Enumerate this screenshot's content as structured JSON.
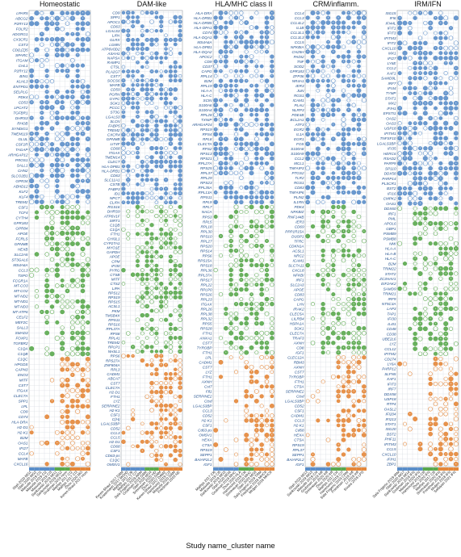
{
  "colors": {
    "blue": "#5b8ec9",
    "green": "#5aa84e",
    "orange": "#e4873a",
    "grid": "#d9dde3",
    "frame": "#9aa0a6",
    "label": "#1f4e8c"
  },
  "figure": {
    "xlabel": "Study name_cluster name"
  },
  "chart_data": [
    {
      "type": "dot-matrix",
      "title": "Homeostatic",
      "genes": [
        "LPAR5",
        "ABCG2",
        "P2RY13",
        "FOLR2",
        "ADGRG1",
        "CX3CR1",
        "CST3",
        "CD(L(Z)5",
        "SPARC",
        "ITGAM",
        "CHL1",
        "P2RY12",
        "BIN1",
        "KLHL3",
        "ENTPD1",
        "SELPLG",
        "PDK4",
        "CD53",
        "LPCAT2",
        "TGFBR1",
        "DHRS3",
        "RHOB",
        "SYNDIG1",
        "TMEM119",
        "GLUL",
        "CSF1R",
        "TAGAP",
        "ARHGAP12",
        "PROS1",
        "SALL1",
        "CHN2",
        "SLCO2B1",
        "GPR34",
        "ABHD12",
        "KLF2",
        "KLF4",
        "TREM2",
        "CSF1",
        "TCF4",
        "CYTH4",
        "GPR183",
        "GPR84",
        "APOE",
        "FCRLS",
        "GPNMB",
        "HEXB",
        "SLC2A5",
        "ST3GAL6",
        "MS4A6A",
        "CCL3",
        "TSPO",
        "FCGR1A",
        "MT-CO3",
        "MT-CO2",
        "MT-ND2",
        "MT-ND1",
        "MT-ND3",
        "MT-ATP6",
        "CELF2",
        "MEF2C",
        "SALL3",
        "SMAD3",
        "FOXP1",
        "TGFBR2",
        "C1QA",
        "C1QB",
        "C1QC",
        "HPGDS",
        "CAPN3",
        "ENO3",
        "MITF",
        "CST7",
        "ITGAX",
        "CLEC7A",
        "SPP1",
        "LPL",
        "CD9",
        "CD74",
        "HLA-DRA",
        "H2-D1",
        "H2-K1",
        "B2M",
        "OAS1",
        "IFI27",
        "CCL4",
        "MAFB",
        "CXCL16"
      ],
      "studies": [
        "Olah 2020 MG1",
        "Olah 2020 MG2",
        "Masuda 2019 Cl1",
        "Masuda 2019 Cl2",
        "Masuda 2019 Cl3",
        "Sankowski 2019 MG1",
        "Sankowski 2019 MG2",
        "Grubman 2019 Hom",
        "Mathys 2017 Cl2",
        "Mathys 2017 Cl3",
        "Zhou 2020 MG",
        "Keren-Shaul 2017 Hom"
      ]
    },
    {
      "type": "dot-matrix",
      "title": "DAM-like",
      "genes": [
        "CD9",
        "SPP1",
        "APOC1",
        "CD63",
        "LGALS3",
        "LIPA",
        "GLRX",
        "LGMN",
        "ATP6V0D2",
        "ASAH1",
        "NAPSA",
        "RAMP1",
        "CTSL",
        "PLA2G7",
        "CST7",
        "SOCS6",
        "MAFB",
        "CD59",
        "PGRN",
        "GYPC",
        "SGK1",
        "PCCC",
        "ST3G",
        "LGALS3",
        "SLCN",
        "FABP5",
        "TREM2",
        "CXCR4",
        "GPNMB",
        "LIT4F",
        "CD68",
        "ITGAX",
        "TMEM14",
        "CLECT",
        "HLA-DPB1",
        "HLA-DRB1",
        "CD63",
        "SLC11A1",
        "CSTB",
        "FABP3",
        "ID1",
        "NPCT",
        "CLIPA",
        "RGS16",
        "DHRS9",
        "ATP6V1F",
        "SIRT1",
        "C1QB",
        "C1QA",
        "FTH1",
        "CHI3L1",
        "CYP27A1",
        "MYO1E",
        "GAPDH",
        "APOE",
        "CPM",
        "IFI30",
        "PYRG",
        "CTSB",
        "MITF",
        "CTSZ",
        "LIPA",
        "RPS12",
        "RPS19",
        "RPS15",
        "ACSL1",
        "PKM",
        "TMSB4X",
        "RPS11",
        "RPS16",
        "RPL37A",
        "RPS8",
        "RPL41",
        "TREM2",
        "RPLP1",
        "NHSL1",
        "RPS6",
        "RPS27A",
        "ZNF804A",
        "RPL3",
        "CADM1",
        "ABCA7",
        "CST7",
        "CLEC7A",
        "H2-D1",
        "FTH1",
        "LYZ",
        "SERPINE2",
        "H2-K1",
        "CSF1",
        "C(H)",
        "LGALS3BP",
        "CD52",
        "CCL3",
        "CCL5",
        "H2-D1",
        "CD68",
        "CSF1",
        "CD63-ps",
        "C1QC",
        "OMSV1"
      ],
      "studies": [
        "Keren-Shaul 2017 DAM",
        "Krasemann 2017 MGnD",
        "Mathys 2017 Cl6",
        "Mathys 2017 Cl7",
        "Sala Frigerio 2019 ARM",
        "Grubman 2019 DAM",
        "Olah 2020 MG4",
        "Srinivasan 2020 HD",
        "Zhou 2020 DAM",
        "Keren-Shaul 2017 DAM2",
        "Hammond 2019 Cl3",
        "Masuda 2020 DAM",
        "Friedman 2018 NE"
      ]
    },
    {
      "type": "dot-matrix",
      "title": "HLA/MHC class II",
      "genes": [
        "HLA-DRA",
        "HLA-DRB1",
        "HLA-DRB5",
        "HLA-DPA1",
        "CD74",
        "HLA-DQA1",
        "MS4A6A",
        "HLA-DPB1",
        "HLA-DQA2",
        "APOC2",
        "CD9",
        "CD37",
        "CAPG",
        "RPL14",
        "B2M",
        "RPL19",
        "HLA-A",
        "HLA-C",
        "SCIN",
        "S100A6",
        "S100A4",
        "RPL28",
        "TXNIP",
        "ARHGAP24",
        "RPS19",
        "RPS4",
        "RPL8",
        "CLECTA",
        "RPS2",
        "RPS13",
        "RPS21",
        "RPL27A",
        "RPS25",
        "RPL37",
        "RPL29",
        "RPS23",
        "RPL35A",
        "RPL13A",
        "RPS11",
        "RPL9",
        "RPL7",
        "NACA",
        "RPS3",
        "RPL5",
        "RPL18",
        "RPL30",
        "RPS10",
        "RPL27",
        "RPS20",
        "RPS14",
        "RPS6",
        "RPS15A",
        "RPS18",
        "RPL36",
        "RPL37A",
        "RPS17",
        "RPL22",
        "RPLP0",
        "RPS26",
        "RPL23",
        "ITGAX",
        "RPL26",
        "RPL38",
        "RPL32",
        "RPS5",
        "RPS28",
        "FTH1",
        "ANXA1",
        "CST7",
        "TYROBP",
        "FTH1",
        "LPL",
        "CADM1",
        "CST7",
        "LYZ",
        "FTH1",
        "AXNH",
        "Cst7",
        "Ftl1",
        "SERPINE2",
        "Ctsd",
        "LGALS3BP",
        "CCL3",
        "CD52",
        "H2-K1",
        "CSF1",
        "Cd63-ps",
        "OMSV1",
        "HEXA",
        "CTSA",
        "RPS19",
        "SEPP1",
        "BAIAP2L2",
        "IGF1"
      ],
      "studies": [
        "Mathys 2017 Cl6",
        "Masuda 2019 Cl5",
        "Sankowski 2019 MG5",
        "Olah 2020 MG6",
        "Grubman 2019 MHC",
        "Zhou 2020 HLA",
        "Hammond 2019 Cl6",
        "Srinivasan 2020 MHC",
        "Olah 2020 MG8",
        "Sala Frigerio 2019 TRM",
        "Friedman 2018 MHCII",
        "Mrdjen 2018 MHCII"
      ]
    },
    {
      "type": "dot-matrix",
      "title": "CRM/inflamm.",
      "genes": [
        "CCL4",
        "CCL3",
        "CCL4L2",
        "IL1B",
        "CCL3L1",
        "CCL3L3",
        "CCL5",
        "NFKBIA",
        "CH25H",
        "PADI2",
        "TNF",
        "SOD2",
        "GPR183",
        "ZFP36",
        "NR4A1",
        "IER3",
        "JUN",
        "RGS1",
        "ICAM1",
        "PLAU",
        "NLRP3",
        "PDE4B",
        "BCL2A1",
        "ATF3",
        "EGR2",
        "IL1A",
        "EGR1",
        "FOS",
        "S100A8",
        "S100A9",
        "CCL2",
        "MCL1",
        "TNFAIP3",
        "PTGS2",
        "TLR2",
        "RGS1",
        "CD83",
        "TNFAIP6",
        "PLIN2",
        "IL1RN",
        "PDK4",
        "NFKBIZ",
        "RNF144B",
        "IER3",
        "CD69",
        "PPP1R15A",
        "DUSP1",
        "TFRC",
        "CDKN1A",
        "ACSL1",
        "NRC2",
        "ICAM1",
        "SLC7A11",
        "CXCL8",
        "NFKBI",
        "IRF1",
        "SLC2A3",
        "APOE",
        "CD83",
        "CAPG",
        "LYN",
        "IRAK2",
        "CLEC5A",
        "LILRB4",
        "HSPA1A",
        "SGK1",
        "CLEC7A",
        "TRAF3",
        "AXNH",
        "CD8",
        "IGF1",
        "CLEC12A",
        "RBM3",
        "AXNH",
        "CST7",
        "TYROBP",
        "FTH1",
        "CTSA",
        "SERPINE2",
        "Ctsd",
        "LGALS3BP",
        "CD52",
        "CSF1",
        "CADM1",
        "CCL3",
        "H2-K1",
        "Cd68",
        "HEXA",
        "CTSA",
        "RPS19",
        "RPL37",
        "SEPP1",
        "BAIAP2L2",
        "IGF1"
      ],
      "studies": [
        "Olah 2020 MG3",
        "Sankowski 2019 MG3",
        "Masuda 2019 Cl4",
        "Grubman 2019 Infl",
        "Srinivasan 2020 Infl",
        "Zhou 2020 Infl",
        "Mathys 2017 Cl4",
        "Hammond 2019 Cl7",
        "Sala Frigerio 2019 CRM",
        "Friedman 2018 Infl",
        "Li 2019 Infl",
        "Sousa 2018 LPS"
      ]
    },
    {
      "type": "dot-matrix",
      "title": "IRM/IFN",
      "genes": [
        "ISG15",
        "IFI6",
        "IFI44L",
        "IFIT1",
        "IFIT3",
        "IFITM3",
        "IFIT2",
        "CXCL10",
        "MX1",
        "IFI27",
        "LY6E",
        "CCL2",
        "XAF1",
        "SAMD9L",
        "IRF7",
        "IFI44",
        "TYMP",
        "STAT1",
        "MX2",
        "IFIH1",
        "EPSTI1",
        "OAS2",
        "OAS3",
        "USP18",
        "IFITM1",
        "TNFSF10",
        "LGALS3BP",
        "IFI35",
        "HERC6",
        "RSAD2",
        "PARP9",
        "SP110",
        "DDX58",
        "PARP14",
        "PLSCR1",
        "BST2",
        "IFI16",
        "CMPK2",
        "OAS1",
        "DDX60",
        "IRF1",
        "PML",
        "APOL6",
        "GBP1",
        "PSMB9",
        "PSMB8",
        "NMI",
        "HLA-A",
        "HLA-B",
        "HLA-C",
        "B2M",
        "TRIM22",
        "STAT2",
        "ZC3HAV1",
        "EIF2AK2",
        "SAMD9",
        "TRIM21",
        "IRF9",
        "NT5C3A",
        "LAP3",
        "TAP1",
        "IFI30",
        "IL4I1",
        "CD48",
        "CD38",
        "UBE2L6",
        "LYZ",
        "CCL12",
        "IFITM2",
        "CD274",
        "LY6A",
        "PARP12",
        "SLFN5",
        "XAF1",
        "IFIT3",
        "IRF7",
        "DDX58",
        "USP18",
        "RTP4",
        "OASL2",
        "IFI204",
        "IFI213",
        "STAT1",
        "ISG20",
        "BST2",
        "PHF11",
        "IFITM3",
        "CCL5",
        "CXCL10",
        "IFIH1",
        "ZBP1"
      ],
      "studies": [
        "Sala Frigerio 2019 IRM",
        "Olah 2020 MG7",
        "Sankowski 2019 MG4",
        "Grubman 2019 IFN",
        "Masuda 2020 IFN",
        "Hammond 2019 Cl8",
        "Zhou 2020 IFN",
        "Mathys 2017 Cl5",
        "Srinivasan 2020 IFN",
        "Friedman 2018 IFN",
        "Mrdjen 2018 IFN",
        "Safaiyan 2021 IFN"
      ]
    }
  ]
}
